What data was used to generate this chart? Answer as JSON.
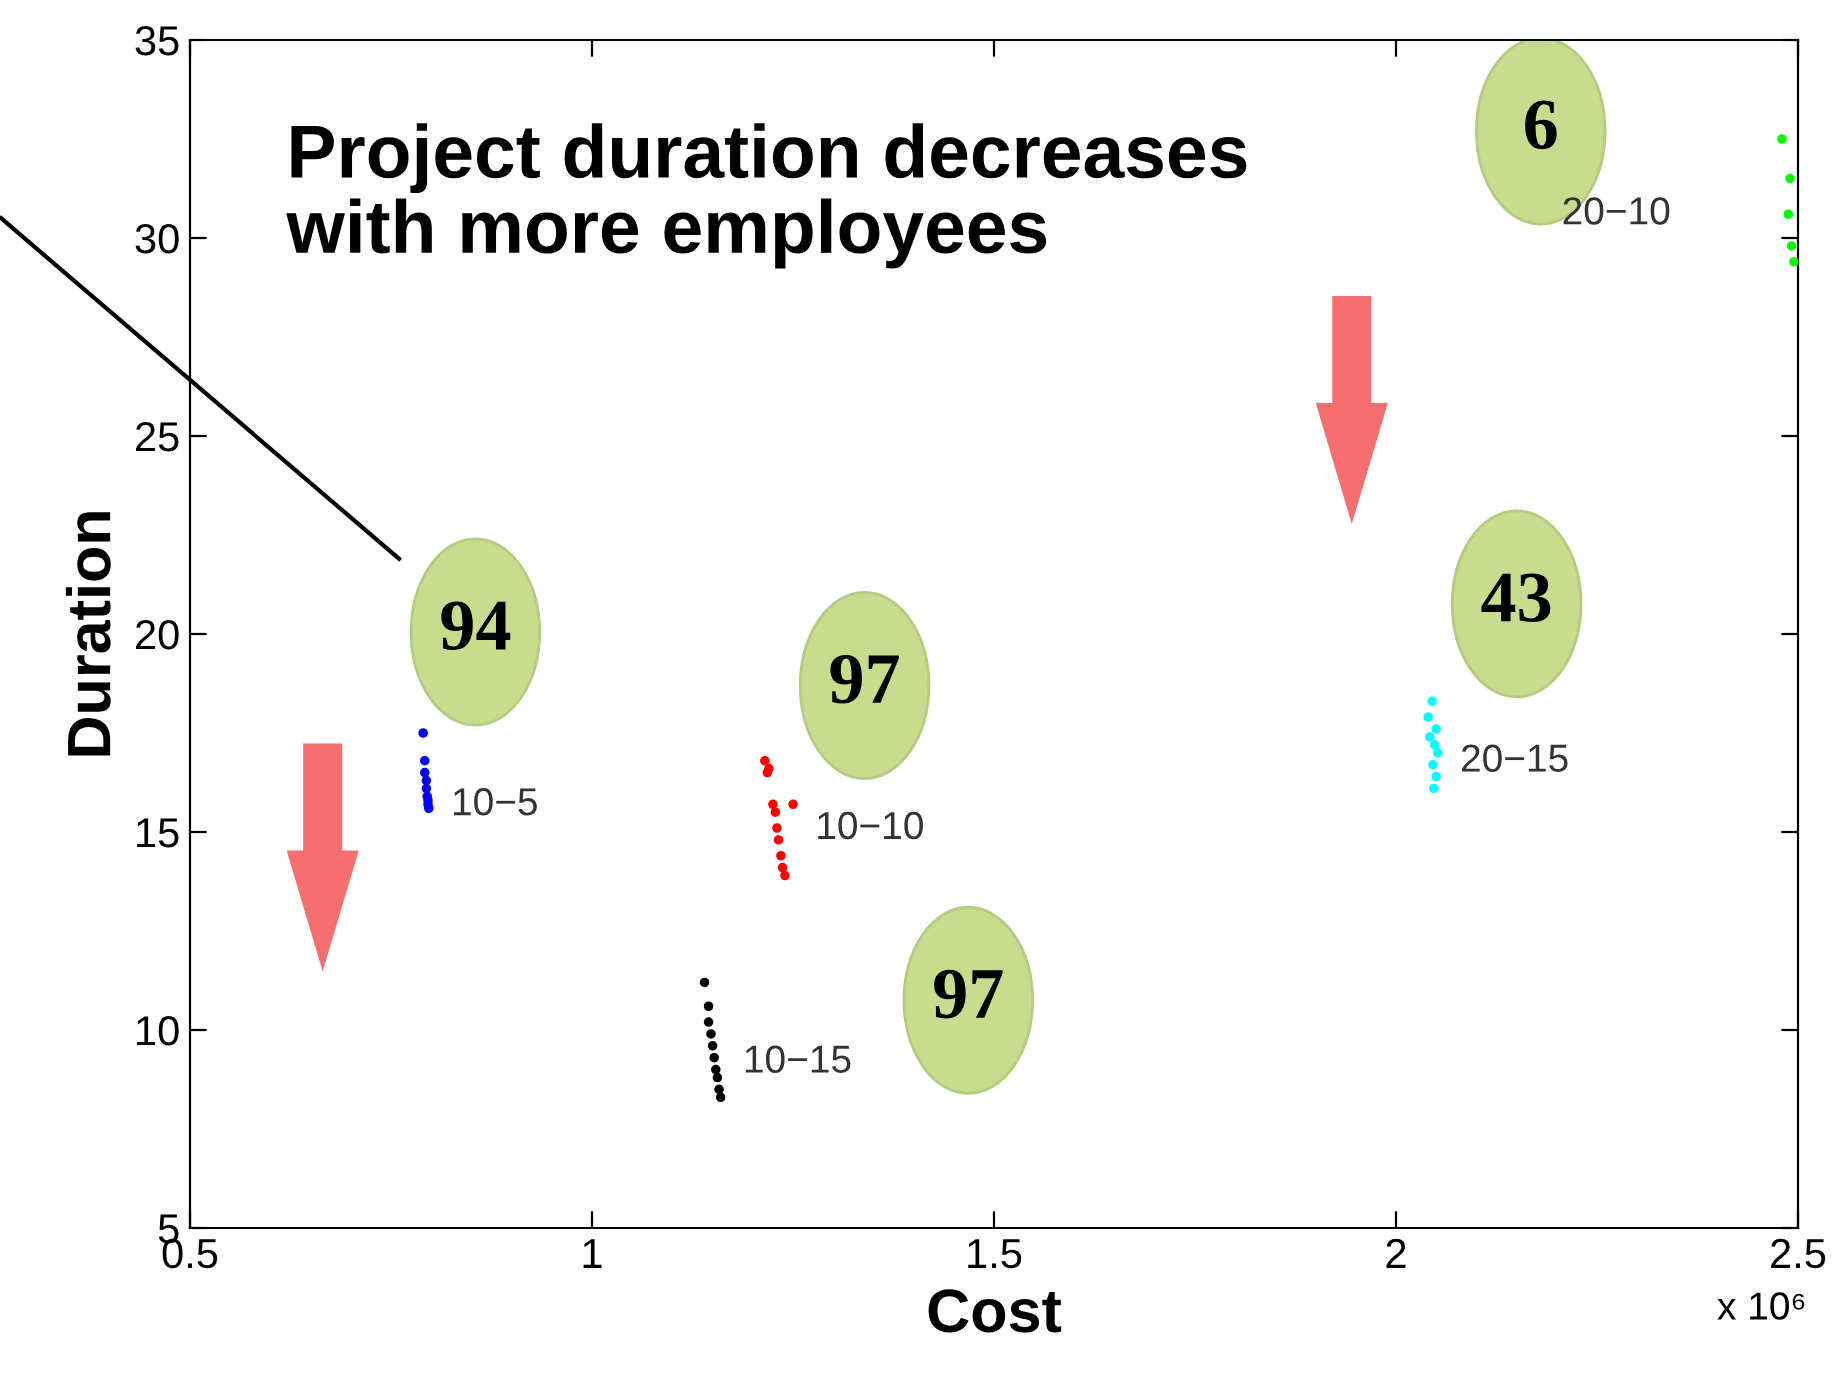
{
  "chart_data": {
    "type": "scatter",
    "xlabel": "Cost",
    "ylabel": "Duration",
    "xlim": [
      0.5,
      2.5
    ],
    "ylim": [
      5,
      35
    ],
    "xticks": [
      0.5,
      1,
      1.5,
      2,
      2.5
    ],
    "yticks": [
      5,
      10,
      15,
      20,
      25,
      30,
      35
    ],
    "grid": false,
    "marker": "circle",
    "series": [
      {
        "name": "10−5",
        "color": "#0000ff",
        "x": [
          0.79,
          0.792,
          0.792,
          0.794,
          0.794,
          0.795,
          0.796,
          0.796,
          0.797
        ],
        "values": [
          17.5,
          16.8,
          16.5,
          16.3,
          16.1,
          15.9,
          15.8,
          15.7,
          15.6
        ]
      },
      {
        "name": "10−10",
        "color": "#ff0000",
        "x": [
          1.215,
          1.22,
          1.218,
          1.225,
          1.25,
          1.228,
          1.23,
          1.232,
          1.235,
          1.237,
          1.24
        ],
        "values": [
          16.8,
          16.6,
          16.5,
          15.7,
          15.7,
          15.5,
          15.1,
          14.8,
          14.4,
          14.1,
          13.9
        ]
      },
      {
        "name": "10−15",
        "color": "#000000",
        "x": [
          1.14,
          1.145,
          1.145,
          1.148,
          1.15,
          1.152,
          1.154,
          1.156,
          1.158,
          1.16
        ],
        "values": [
          11.2,
          10.6,
          10.2,
          9.9,
          9.6,
          9.3,
          9.0,
          8.8,
          8.5,
          8.3
        ]
      },
      {
        "name": "20−15",
        "color": "#00ffff",
        "x": [
          2.045,
          2.04,
          2.05,
          2.042,
          2.048,
          2.052,
          2.046,
          2.05,
          2.047
        ],
        "values": [
          18.3,
          17.9,
          17.6,
          17.4,
          17.2,
          17.0,
          16.7,
          16.4,
          16.1
        ]
      },
      {
        "name": "20−10",
        "color": "#00ff00",
        "x": [
          2.48,
          2.49,
          2.488,
          2.492,
          2.495
        ],
        "values": [
          32.5,
          31.5,
          30.6,
          29.8,
          29.4
        ]
      }
    ],
    "annotations": [
      "Project duration decreases\nwith more employees",
      "x 10⁶",
      "94",
      "97",
      "97",
      "43",
      "6"
    ]
  }
}
